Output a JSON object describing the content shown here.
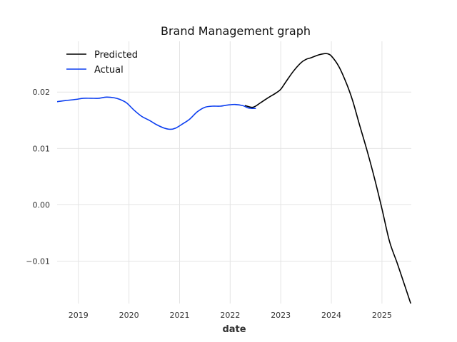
{
  "chart_data": {
    "type": "line",
    "title": "Brand Management graph",
    "xlabel": "date",
    "ylabel": "",
    "xlim": [
      2018.58,
      2025.58
    ],
    "ylim": [
      -0.0175,
      0.029
    ],
    "x_ticks": [
      2019,
      2020,
      2021,
      2022,
      2023,
      2024,
      2025
    ],
    "x_tick_labels": [
      "2019",
      "2020",
      "2021",
      "2022",
      "2023",
      "2024",
      "2025"
    ],
    "y_ticks": [
      -0.01,
      0.0,
      0.01,
      0.02
    ],
    "y_tick_labels": [
      "−0.01",
      "0.00",
      "0.01",
      "0.02"
    ],
    "grid": true,
    "legend_position": "top-left",
    "series": [
      {
        "name": "Predicted",
        "color": "#000000",
        "x": [
          2022.3,
          2022.45,
          2022.6,
          2022.75,
          2022.9,
          2023.0,
          2023.1,
          2023.25,
          2023.4,
          2023.5,
          2023.6,
          2023.75,
          2023.85,
          2023.92,
          2024.0,
          2024.15,
          2024.3,
          2024.42,
          2024.55,
          2024.7,
          2024.85,
          2025.0,
          2025.15,
          2025.3,
          2025.45,
          2025.58
        ],
        "values": [
          0.0176,
          0.0173,
          0.0181,
          0.019,
          0.0198,
          0.0205,
          0.0218,
          0.0237,
          0.0252,
          0.0258,
          0.0261,
          0.0266,
          0.0268,
          0.0268,
          0.0264,
          0.0245,
          0.0215,
          0.0185,
          0.0144,
          0.0098,
          0.0048,
          -0.0007,
          -0.0065,
          -0.0103,
          -0.0143,
          -0.0178
        ]
      },
      {
        "name": "Actual",
        "color": "#0a3df0",
        "x": [
          2018.58,
          2018.75,
          2018.95,
          2019.1,
          2019.25,
          2019.4,
          2019.55,
          2019.7,
          2019.82,
          2019.95,
          2020.1,
          2020.25,
          2020.4,
          2020.55,
          2020.7,
          2020.82,
          2020.92,
          2021.05,
          2021.2,
          2021.35,
          2021.5,
          2021.65,
          2021.8,
          2021.95,
          2022.1,
          2022.25,
          2022.35,
          2022.43,
          2022.5
        ],
        "values": [
          0.0183,
          0.0185,
          0.0187,
          0.0189,
          0.0189,
          0.0189,
          0.0191,
          0.019,
          0.0187,
          0.0181,
          0.0168,
          0.0157,
          0.015,
          0.0142,
          0.0136,
          0.0134,
          0.0136,
          0.0143,
          0.0152,
          0.0165,
          0.0173,
          0.0175,
          0.0175,
          0.0177,
          0.0178,
          0.0176,
          0.0172,
          0.0171,
          0.0171
        ]
      }
    ]
  }
}
